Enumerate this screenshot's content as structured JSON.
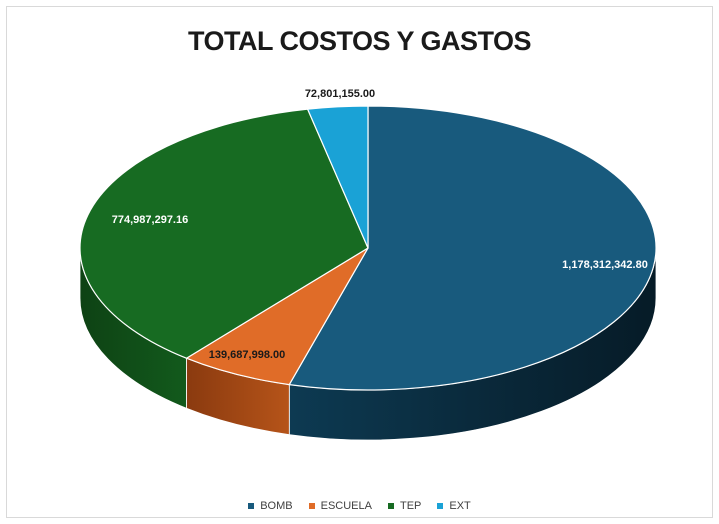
{
  "chart_data": {
    "type": "pie",
    "title": "TOTAL COSTOS Y GASTOS",
    "categories": [
      "BOMB",
      "ESCUELA",
      "TEP",
      "EXT"
    ],
    "values": [
      1178312342.8,
      139687998.0,
      774987297.16,
      72801155.0
    ],
    "value_labels": [
      "1,178,312,342.80",
      "139,687,998.00",
      "774,987,297.16",
      "72,801,155.00"
    ],
    "colors": [
      "#185a7d",
      "#e06c28",
      "#176b22",
      "#1aa2d6"
    ],
    "legend_position": "bottom",
    "style": "3d"
  }
}
